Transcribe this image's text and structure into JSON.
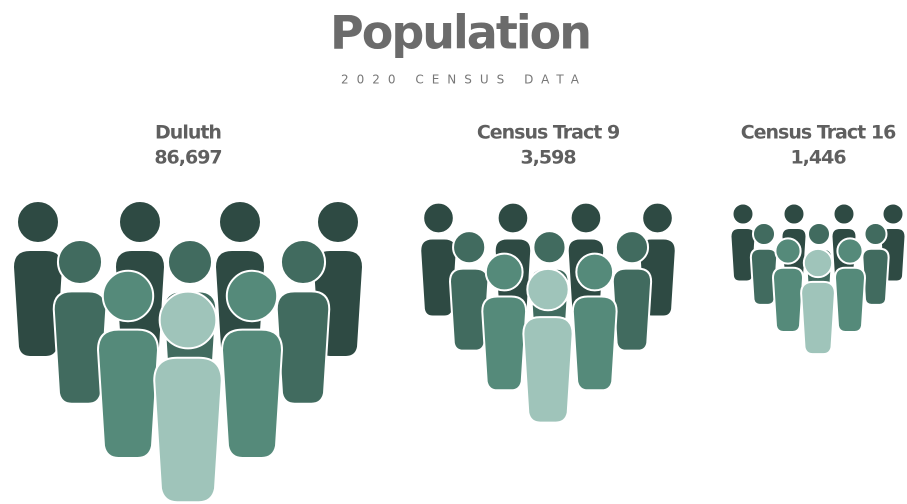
{
  "header": {
    "title": "Population",
    "subtitle": "2020 CENSUS DATA"
  },
  "groups": [
    {
      "name": "Duluth",
      "value": "86,697"
    },
    {
      "name": "Census Tract 9",
      "value": "3,598"
    },
    {
      "name": "Census Tract 16",
      "value": "1,446"
    }
  ]
}
